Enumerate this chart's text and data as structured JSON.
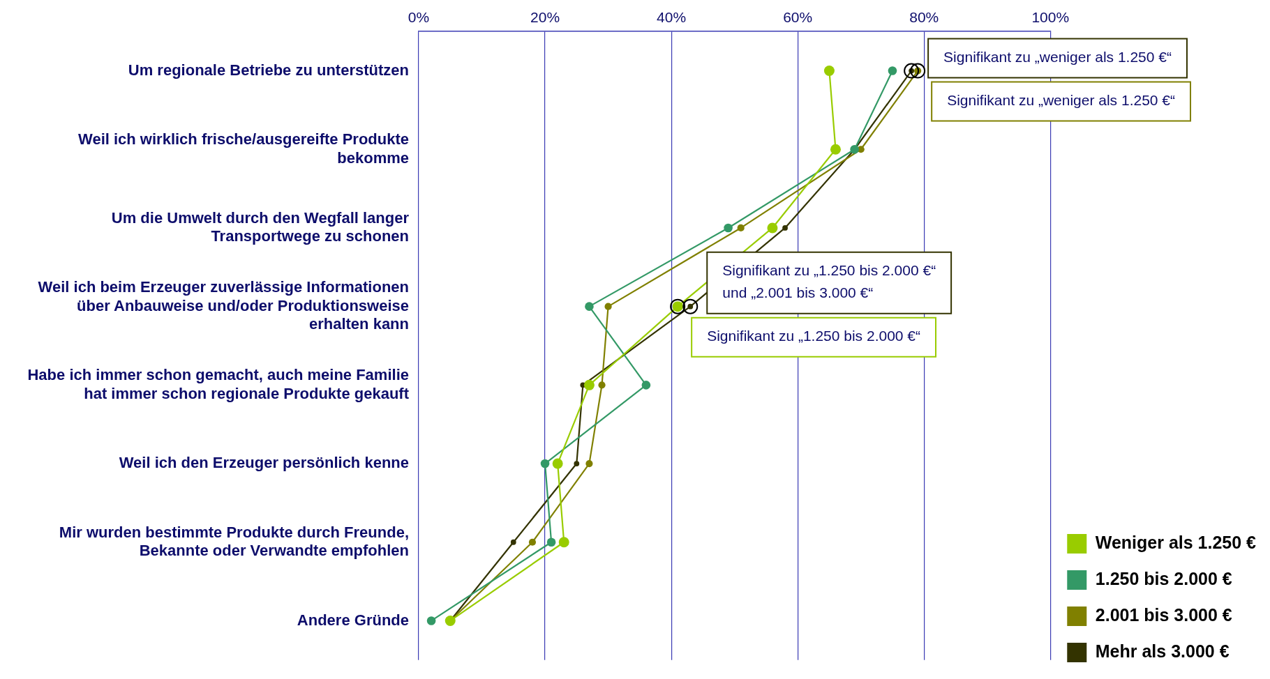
{
  "chart_data": {
    "type": "line",
    "orientation": "horizontal",
    "categories": [
      "Um regionale Betriebe zu unterstützen",
      "Weil ich wirklich frische/ausgereifte Produkte bekomme",
      "Um die Umwelt durch den Wegfall langer Transportwege zu schonen",
      "Weil ich beim Erzeuger zuverlässige Informationen über Anbauweise und/oder Produktionsweise erhalten kann",
      "Habe ich immer schon gemacht, auch meine Familie hat immer schon regionale Produkte gekauft",
      "Weil ich den Erzeuger persönlich kenne",
      "Mir wurden bestimmte Produkte durch Freunde, Bekannte oder Verwandte empfohlen",
      "Andere Gründe"
    ],
    "series": [
      {
        "name": "Weniger als 1.250 €",
        "color": "#99cc00",
        "values": [
          65,
          66,
          56,
          41,
          27,
          22,
          23,
          5
        ]
      },
      {
        "name": "1.250 bis 2.000 €",
        "color": "#339966",
        "values": [
          75,
          69,
          49,
          27,
          36,
          20,
          21,
          2
        ]
      },
      {
        "name": "2.001 bis 3.000 €",
        "color": "#808000",
        "values": [
          79,
          70,
          51,
          30,
          29,
          27,
          18,
          5
        ]
      },
      {
        "name": "Mehr als 3.000 €",
        "color": "#333300",
        "values": [
          78,
          69,
          58,
          43,
          26,
          25,
          15,
          5
        ]
      }
    ],
    "xlim": [
      0,
      100
    ],
    "xticks": [
      {
        "value": 0,
        "label": "0%"
      },
      {
        "value": 20,
        "label": "20%"
      },
      {
        "value": 40,
        "label": "40%"
      },
      {
        "value": 60,
        "label": "60%"
      },
      {
        "value": 80,
        "label": "80%"
      },
      {
        "value": 100,
        "label": "100%"
      }
    ],
    "grid": "x",
    "legend": "bottom right",
    "marker": "circle",
    "annotations": [
      {
        "text": "Signifikant zu „weniger als 1.250 €“",
        "x": 78,
        "y": "Um regionale Betriebe zu unterstützen"
      },
      {
        "text": "Signifikant zu „weniger als 1.250 €“",
        "x": 79,
        "y": "Um regionale Betriebe zu unterstützen"
      },
      {
        "text": "Signifikant zu „1.250 bis 2.000 €“\nund „2.001 bis 3.000 €“",
        "x": 43,
        "y": "Weil ich beim Erzeuger zuverlässige Informationen über Anbauweise und/oder Produktionsweise erhalten kann"
      },
      {
        "text": "Signifikant zu „1.250 bis 2.000 €“",
        "x": 41,
        "y": "Weil ich beim Erzeuger zuverlässige Informationen über Anbauweise und/oder Produktionsweise erhalten kann"
      }
    ]
  }
}
